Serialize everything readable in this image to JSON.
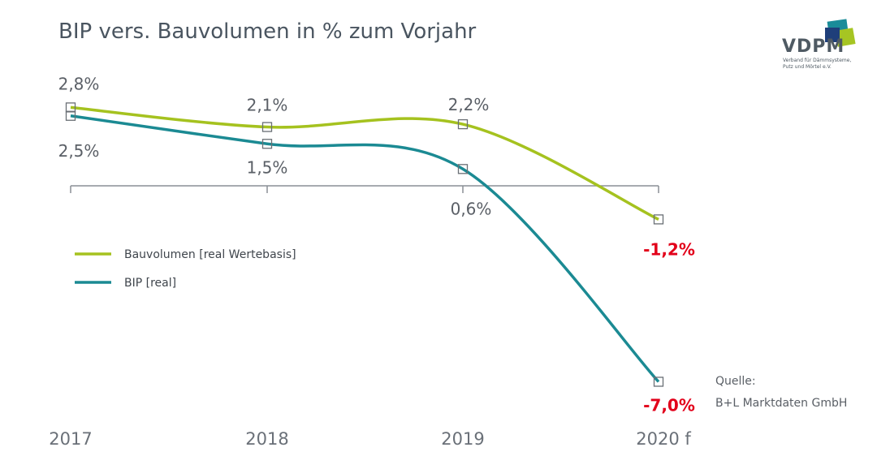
{
  "header": {
    "title": "BIP vers. Bauvolumen in % zum Vorjahr"
  },
  "logo": {
    "name": "VDPM",
    "subtitle_line1": "Verband für Dämmsysteme,",
    "subtitle_line2": "Putz und Mörtel e.V.",
    "colors": [
      "#1f3f7a",
      "#1a8c99",
      "#a6c523"
    ]
  },
  "source": {
    "label": "Quelle:",
    "value": "B+L Marktdaten GmbH"
  },
  "chart_data": {
    "type": "line",
    "title": "BIP vers. Bauvolumen in % zum Vorjahr",
    "categories": [
      "2017",
      "2018",
      "2019",
      "2020 f"
    ],
    "series": [
      {
        "name": "Bauvolumen [real Wertebasis]",
        "values": [
          2.8,
          2.1,
          2.2,
          -1.2
        ],
        "labels": [
          "2,8%",
          "2,1%",
          "2,2%",
          "-1,2%"
        ],
        "color": "#a5c21f"
      },
      {
        "name": "BIP [real]",
        "values": [
          2.5,
          1.5,
          0.6,
          -7.0
        ],
        "labels": [
          "2,5%",
          "1,5%",
          "0,6%",
          "-7,0%"
        ],
        "color": "#1b8a93"
      }
    ],
    "negative_label_color": "#e2001a",
    "legend_position": "left-middle",
    "grid": false
  }
}
